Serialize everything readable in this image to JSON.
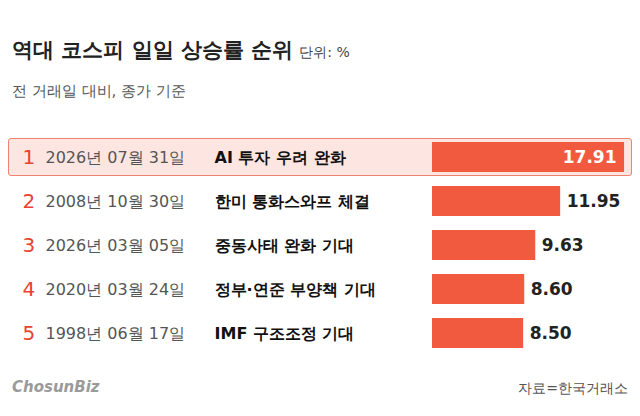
{
  "chart_data": {
    "type": "bar",
    "orientation": "horizontal",
    "title": "역대 코스피 일일 상승률 순위",
    "unit": "단위: %",
    "subtitle": "전 거래일 대비, 종가 기준",
    "source": "자료=한국거래소",
    "brand": "ChosunBiz",
    "ranks": [
      1,
      2,
      3,
      4,
      5
    ],
    "dates": [
      "2026년 07월 31일",
      "2008년 10월 30일",
      "2026년 03월 05일",
      "2020년 03월 24일",
      "1998년 06월 17일"
    ],
    "categories": [
      "AI 투자 우려 완화",
      "한미 통화스와프 체결",
      "중동사태 완화 기대",
      "정부·연준 부양책 기대",
      "IMF 구조조정 기대"
    ],
    "values": [
      17.91,
      11.95,
      9.63,
      8.6,
      8.5
    ],
    "value_labels": [
      "17.91",
      "11.95",
      "9.63",
      "8.60",
      "8.50"
    ],
    "color": "#f15a3e",
    "xlim": [
      0,
      18
    ],
    "data_labels": true,
    "tick_labels": false
  }
}
